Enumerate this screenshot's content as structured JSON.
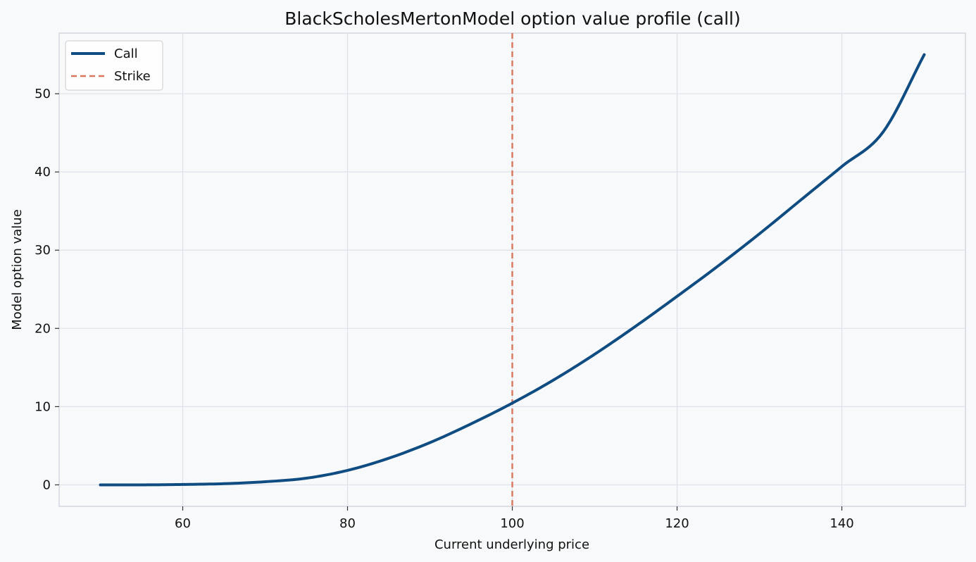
{
  "chart_data": {
    "type": "line",
    "title": "BlackScholesMertonModel option value profile (call)",
    "xlabel": "Current underlying price",
    "ylabel": "Model option value",
    "xlim": [
      45,
      155
    ],
    "ylim": [
      -2.75,
      57.75
    ],
    "x_ticks": [
      60,
      80,
      100,
      120,
      140
    ],
    "y_ticks": [
      0,
      10,
      20,
      30,
      40,
      50
    ],
    "grid": true,
    "legend_position": "top-left",
    "series": [
      {
        "name": "Call",
        "color": "#0f4c81",
        "style": "solid",
        "x": [
          50,
          55,
          60,
          65,
          70,
          75,
          80,
          85,
          90,
          95,
          100,
          105,
          110,
          115,
          120,
          125,
          130,
          135,
          140,
          145,
          150
        ],
        "values": [
          0.0,
          0.0,
          0.05,
          0.15,
          0.4,
          0.85,
          1.85,
          3.4,
          5.4,
          7.8,
          10.45,
          13.4,
          16.7,
          20.3,
          24.1,
          28.0,
          32.1,
          36.4,
          40.7,
          45.1,
          55.0
        ]
      }
    ],
    "vlines": [
      {
        "name": "Strike",
        "x": 100,
        "color": "#d9765c",
        "style": "dashed"
      }
    ]
  }
}
